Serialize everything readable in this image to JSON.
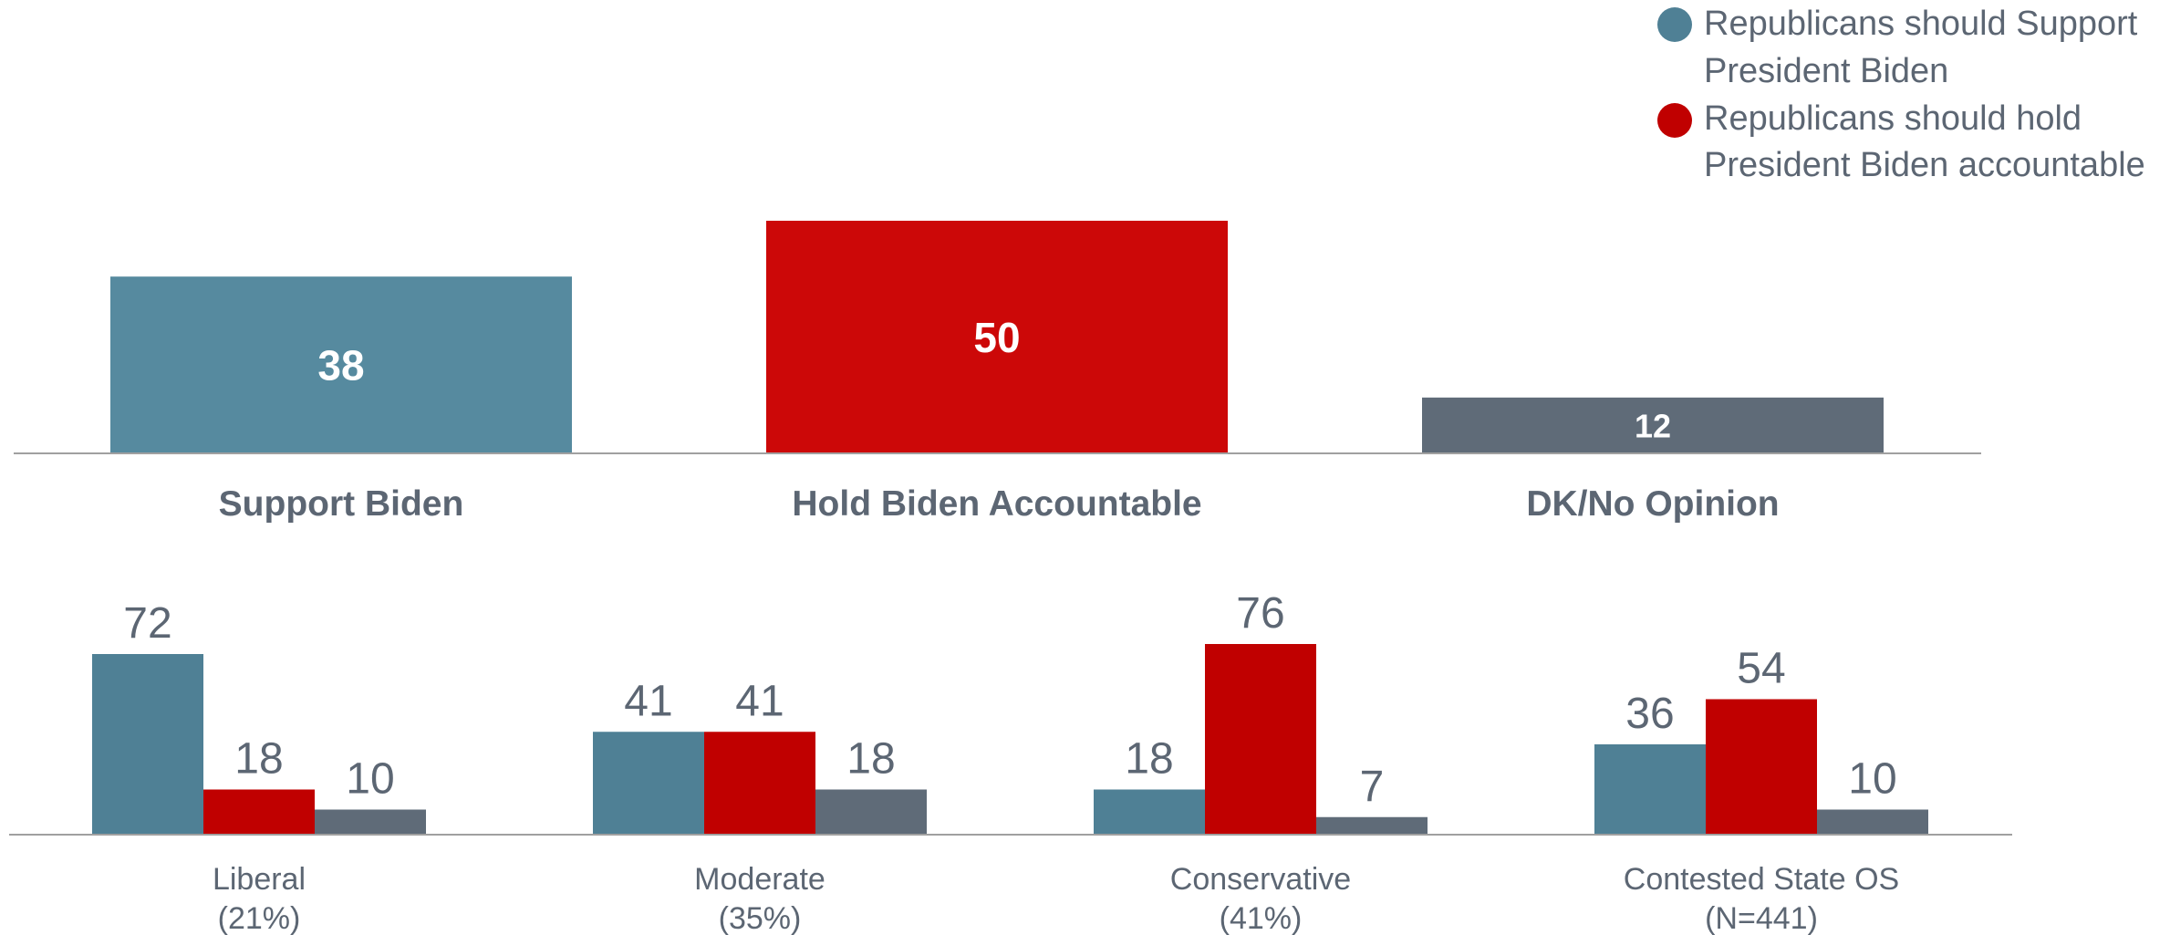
{
  "colors": {
    "support": "#568a9f",
    "support_small": "#4f8095",
    "accountable": "#cc0808",
    "accountable_small": "#c00000",
    "dk": "#5f6b78",
    "text": "#5c6673",
    "axis": "#a0a0a0",
    "inside_label": "#ffffff"
  },
  "legend": {
    "items": [
      {
        "line1": "Republicans should Support",
        "line2": "President Biden",
        "color": "#4f8095"
      },
      {
        "line1": "Republicans should hold",
        "line2": "President Biden accountable",
        "color": "#c00000"
      }
    ]
  },
  "chart_data": [
    {
      "type": "bar",
      "categories": [
        "Support Biden",
        "Hold Biden Accountable",
        "DK/No Opinion"
      ],
      "values": [
        38,
        50,
        12
      ],
      "data_labels": [
        "38",
        "50",
        "12"
      ],
      "colors": [
        "#568a9f",
        "#cc0808",
        "#5f6b78"
      ],
      "ylim": [
        0,
        50
      ],
      "grid": false
    },
    {
      "type": "bar",
      "categories": [
        {
          "name": "Liberal",
          "sub": "(21%)"
        },
        {
          "name": "Moderate",
          "sub": "(35%)"
        },
        {
          "name": "Conservative",
          "sub": "(41%)"
        },
        {
          "name": "Contested State OS",
          "sub": "(N=441)"
        }
      ],
      "series": [
        {
          "values": [
            72,
            41,
            18,
            36
          ],
          "color": "#4f8095"
        },
        {
          "values": [
            18,
            41,
            76,
            54
          ],
          "color": "#c00000"
        },
        {
          "values": [
            10,
            18,
            7,
            10
          ],
          "color": "#5f6b78"
        }
      ],
      "ylim": [
        0,
        76
      ],
      "grid": false
    }
  ]
}
